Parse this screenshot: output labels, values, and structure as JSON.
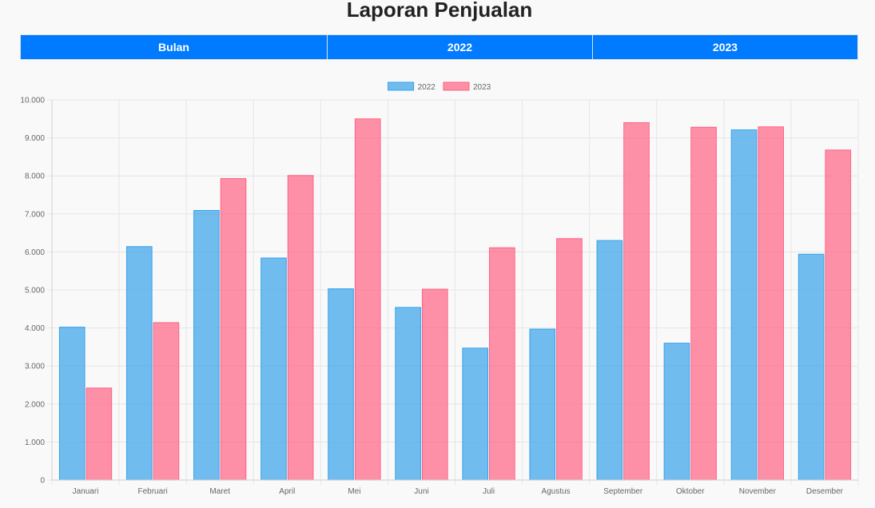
{
  "page": {
    "title": "Laporan Penjualan"
  },
  "table": {
    "headers": [
      "Bulan",
      "2022",
      "2023"
    ]
  },
  "colors": {
    "header_bg": "#007bff",
    "series_2022_fill": "rgba(54,162,235,0.7)",
    "series_2022_stroke": "#36a2eb",
    "series_2023_fill": "rgba(255,99,132,0.7)",
    "series_2023_stroke": "#ff6384",
    "grid": "#e6e6e6"
  },
  "chart_data": {
    "type": "bar",
    "title": "",
    "xlabel": "",
    "ylabel": "",
    "categories": [
      "Januari",
      "Februari",
      "Maret",
      "April",
      "Mei",
      "Juni",
      "Juli",
      "Agustus",
      "September",
      "Oktober",
      "November",
      "Desember"
    ],
    "series": [
      {
        "name": "2022",
        "values": [
          4020,
          6140,
          7090,
          5840,
          5030,
          4540,
          3470,
          3970,
          6300,
          3600,
          9210,
          5940
        ]
      },
      {
        "name": "2023",
        "values": [
          2420,
          4140,
          7930,
          8010,
          9500,
          5020,
          6110,
          6350,
          9400,
          9280,
          9290,
          8680
        ]
      }
    ],
    "ylim": [
      0,
      10000
    ],
    "yticks": [
      0,
      1000,
      2000,
      3000,
      4000,
      5000,
      6000,
      7000,
      8000,
      9000,
      10000
    ],
    "ytick_labels": [
      "0",
      "1.000",
      "2.000",
      "3.000",
      "4.000",
      "5.000",
      "6.000",
      "7.000",
      "8.000",
      "9.000",
      "10.000"
    ],
    "grid": true,
    "legend_position": "top-center"
  }
}
